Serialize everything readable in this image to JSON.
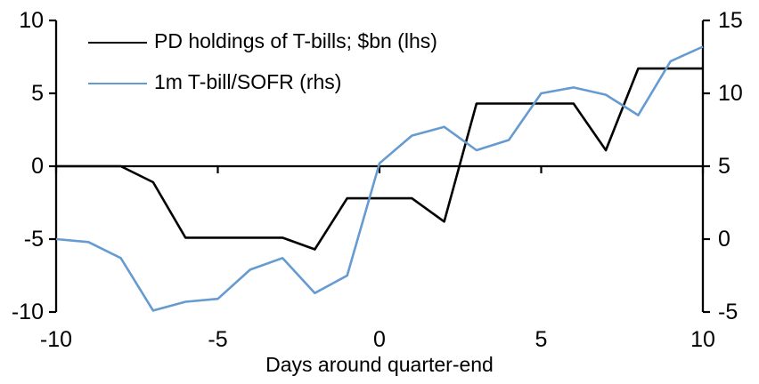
{
  "chart_data": {
    "type": "line",
    "title": "",
    "xlabel": "Days around quarter-end",
    "x": [
      -10,
      -9,
      -8,
      -7,
      -6,
      -5,
      -4,
      -3,
      -2,
      -1,
      0,
      1,
      2,
      3,
      4,
      5,
      6,
      7,
      8,
      9,
      10
    ],
    "x_ticks": [
      -10,
      -5,
      0,
      5,
      10
    ],
    "axes": {
      "x": {
        "min": -10,
        "max": 10
      },
      "left": {
        "ticks": [
          10,
          5,
          0,
          -5,
          -10
        ],
        "min": -10,
        "max": 10
      },
      "right": {
        "ticks": [
          15,
          10,
          5,
          0,
          -5
        ],
        "min": -5,
        "max": 15
      }
    },
    "grid": false,
    "legend_position": "top-left",
    "series": [
      {
        "name": "PD holdings of T-bills; $bn (lhs)",
        "axis": "lhs",
        "color": "#000000",
        "values": [
          0,
          0,
          0,
          -1.1,
          -4.9,
          -4.9,
          -4.9,
          -4.9,
          -5.7,
          -2.2,
          -2.2,
          -2.2,
          -3.8,
          4.3,
          4.3,
          4.3,
          4.3,
          1.1,
          6.7,
          6.7,
          6.7
        ]
      },
      {
        "name": "1m T-bill/SOFR (rhs)",
        "axis": "rhs",
        "color": "#669BD2",
        "values": [
          0,
          -0.2,
          -1.3,
          -4.9,
          -4.3,
          -4.1,
          -2.1,
          -1.3,
          -3.7,
          -2.5,
          5.2,
          7.1,
          7.7,
          6.1,
          6.8,
          10,
          10.4,
          9.9,
          8.5,
          12.2,
          13.2
        ]
      }
    ]
  }
}
